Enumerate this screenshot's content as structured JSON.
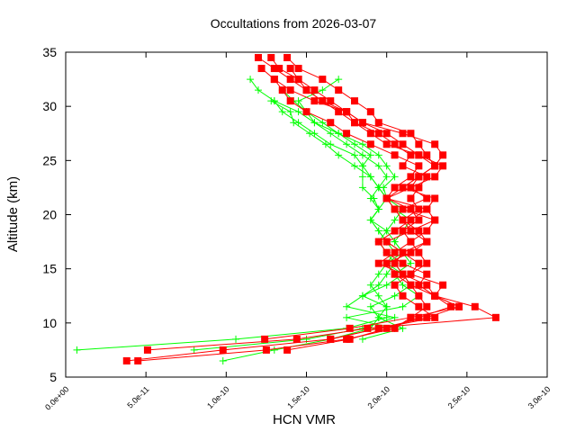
{
  "chart_data": {
    "type": "line",
    "title": "Occultations from 2026-03-07",
    "xlabel": "HCN VMR",
    "ylabel": "Altitude (km)",
    "xlim": [
      0,
      3e-10
    ],
    "ylim": [
      5,
      35
    ],
    "x_ticks": [
      "0.0e+00",
      "5.0e-11",
      "1.0e-10",
      "1.5e-10",
      "2.0e-10",
      "2.5e-10",
      "3.0e-10"
    ],
    "x_tick_values": [
      0,
      5e-11,
      1e-10,
      1.5e-10,
      2e-10,
      2.5e-10,
      3e-10
    ],
    "y_ticks": [
      "5",
      "10",
      "15",
      "20",
      "25",
      "30",
      "35"
    ],
    "y_tick_values": [
      5,
      10,
      15,
      20,
      25,
      30,
      35
    ],
    "grid": false,
    "altitude_step_km": 1,
    "value_unit": 1e-10,
    "series": [
      {
        "color": "#ff0000",
        "marker": "square",
        "start_altitude": 6.5,
        "values": [
          0.45,
          1.25,
          1.75,
          2.05,
          2.15,
          2.25,
          2.2,
          2.15,
          2.1,
          2.05,
          2.1,
          2.0,
          2.15,
          2.1,
          2.2,
          2.15,
          2.2,
          2.25,
          2.1,
          2.15,
          2.05,
          1.95,
          1.8,
          1.7,
          1.6,
          1.5,
          1.4,
          1.3,
          1.2
        ]
      },
      {
        "color": "#ff0000",
        "marker": "square",
        "start_altitude": 6.5,
        "values": [
          0.38,
          0.98,
          1.65,
          1.95,
          2.25,
          2.45,
          2.3,
          2.2,
          2.25,
          2.1,
          2.0,
          1.95,
          2.05,
          2.15,
          2.25,
          2.3,
          2.1,
          2.2,
          2.3,
          2.25,
          2.2,
          2.15,
          1.95,
          1.9,
          1.8,
          1.7,
          1.6,
          1.45,
          1.38
        ]
      },
      {
        "color": "#ff0000",
        "marker": "square",
        "start_altitude": 7.5,
        "values": [
          0.51,
          1.44,
          1.88,
          2.68,
          2.55,
          2.3,
          2.15,
          2.05,
          2.0,
          2.15,
          2.25,
          2.2,
          2.1,
          2.05,
          2.0,
          2.1,
          2.2,
          2.3,
          2.35,
          2.3,
          2.1,
          1.85,
          1.75,
          1.65,
          1.55,
          1.45,
          1.33,
          1.28
        ]
      },
      {
        "color": "#ff0000",
        "marker": "square",
        "start_altitude": 8.5,
        "values": [
          1.24,
          1.77,
          2.15,
          2.45,
          2.3,
          2.35,
          2.15,
          2.25,
          2.2,
          2.15,
          2.25,
          2.3,
          2.25,
          2.0,
          2.15,
          2.2,
          2.3,
          2.2,
          2.0,
          1.9,
          1.8,
          1.75,
          1.55,
          1.4,
          1.3,
          1.22
        ]
      },
      {
        "color": "#ff0000",
        "marker": "square",
        "start_altitude": 7.5,
        "values": [
          1.38,
          1.77,
          2.0,
          2.2,
          2.4,
          2.3,
          2.25,
          2.1,
          1.95,
          2.05,
          2.15,
          2.1,
          2.2,
          2.15,
          2.0,
          2.05,
          2.15,
          2.2,
          2.05,
          1.9,
          1.75,
          1.65,
          1.5,
          1.4,
          1.35,
          1.3
        ]
      },
      {
        "color": "#ff0000",
        "marker": "square",
        "start_altitude": 8.5,
        "values": [
          1.65,
          1.95,
          2.3,
          2.2,
          2.1,
          2.05,
          2.15,
          2.2,
          2.1,
          2.25,
          2.15,
          2.3,
          2.1,
          2.25,
          2.15,
          2.3,
          2.35,
          2.2,
          2.1,
          2.0,
          1.85,
          1.75,
          1.6,
          1.5,
          1.45,
          1.4
        ]
      },
      {
        "color": "#00ff00",
        "marker": "plus",
        "start_altitude": 7.5,
        "values": [
          0.07,
          1.06,
          1.75,
          2.0,
          2.0,
          1.95,
          1.9,
          1.95,
          2.0,
          2.05,
          2.0,
          1.95,
          1.9,
          1.95,
          1.92,
          1.85,
          1.85,
          1.85,
          1.9,
          1.8,
          1.7,
          1.55,
          1.45,
          1.3,
          1.2,
          1.15
        ]
      },
      {
        "color": "#00ff00",
        "marker": "plus",
        "start_altitude": 6.5,
        "values": [
          0.98,
          1.3,
          1.65,
          1.9,
          1.95,
          2.0,
          1.85,
          1.95,
          2.0,
          2.05,
          2.1,
          2.0,
          1.95,
          1.9,
          1.95,
          2.0,
          1.95,
          1.9,
          1.85,
          1.8,
          1.65,
          1.55,
          1.45,
          1.35,
          1.3
        ]
      },
      {
        "color": "#00ff00",
        "marker": "plus",
        "start_altitude": 7.5,
        "values": [
          0.8,
          1.5,
          1.85,
          2.05,
          1.75,
          1.85,
          2.0,
          2.1,
          2.05,
          2.0,
          1.95,
          2.0,
          1.9,
          1.95,
          1.9,
          1.95,
          2.0,
          1.95,
          1.85,
          1.75,
          1.65,
          1.55,
          1.5,
          1.45,
          1.6,
          1.7
        ]
      },
      {
        "color": "#00ff00",
        "marker": "plus",
        "start_altitude": 9.5,
        "values": [
          2.05,
          1.75,
          2.1,
          2.2,
          2.1,
          2.05,
          2.15,
          2.1,
          2.05,
          2.0,
          2.05,
          2.1,
          2.0,
          1.98,
          2.05,
          2.0,
          1.95,
          1.85,
          1.7,
          1.6,
          1.5,
          1.42,
          1.35
        ]
      },
      {
        "color": "#00ff00",
        "marker": "plus",
        "start_altitude": 8.5,
        "values": [
          1.85,
          2.1,
          1.95,
          1.9,
          2.05,
          2.15,
          2.1,
          2.0,
          2.1,
          2.05,
          2.1,
          2.15,
          2.05,
          2.0,
          1.95,
          1.9,
          1.8,
          1.7,
          1.62,
          1.52,
          1.42,
          1.4,
          1.28
        ]
      }
    ]
  }
}
